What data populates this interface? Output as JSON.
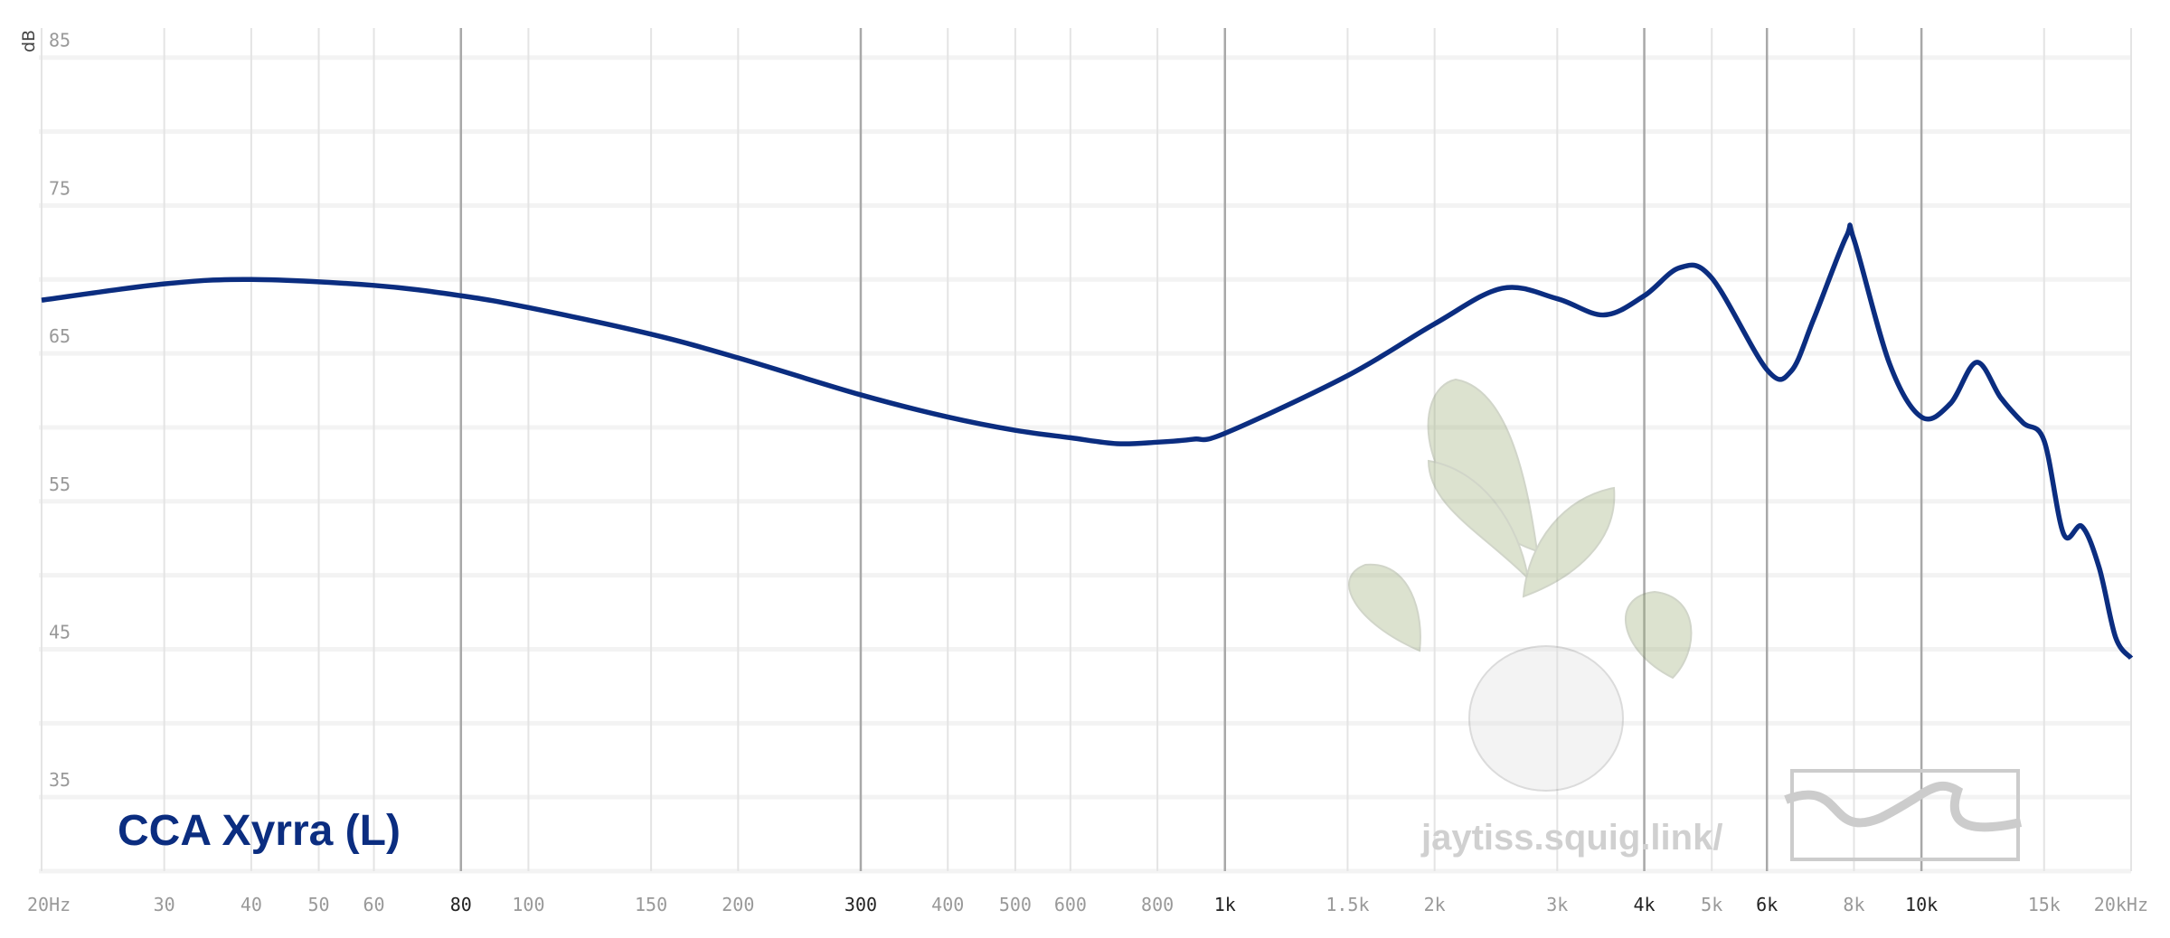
{
  "chart_data": {
    "type": "line",
    "log_x": true,
    "grid": true,
    "y_label": "dB",
    "watermark": "jaytiss.squig.link/",
    "xlim": [
      20,
      20000
    ],
    "ylim": [
      30,
      87
    ],
    "xticks": [
      {
        "value": 20,
        "label": "20Hz"
      },
      30,
      40,
      50,
      60,
      {
        "value": 80,
        "label": "80",
        "major": true
      },
      100,
      150,
      200,
      {
        "value": 300,
        "label": "300",
        "major": true
      },
      400,
      500,
      600,
      800,
      {
        "value": 1000,
        "label": "1k",
        "major": true
      },
      {
        "value": 1500,
        "label": "1.5k"
      },
      {
        "value": 2000,
        "label": "2k"
      },
      {
        "value": 3000,
        "label": "3k"
      },
      {
        "value": 4000,
        "label": "4k",
        "major": true
      },
      {
        "value": 5000,
        "label": "5k"
      },
      {
        "value": 6000,
        "label": "6k",
        "major": true
      },
      {
        "value": 8000,
        "label": "8k"
      },
      {
        "value": 10000,
        "label": "10k",
        "major": true
      },
      {
        "value": 15000,
        "label": "15k"
      },
      {
        "value": 20000,
        "label": "20kHz"
      }
    ],
    "yticks": [
      85,
      75,
      65,
      55,
      45,
      35
    ],
    "minor_yticks": [
      80,
      70,
      60,
      50,
      40,
      30
    ],
    "x": [
      20,
      30,
      40,
      60,
      80,
      100,
      150,
      200,
      300,
      400,
      500,
      600,
      700,
      800,
      900,
      1000,
      1500,
      2000,
      2500,
      3000,
      3500,
      4000,
      4500,
      5000,
      6000,
      6500,
      7000,
      7800,
      8000,
      9000,
      10000,
      11000,
      12000,
      13000,
      14000,
      15000,
      16000,
      17000,
      18000,
      19000,
      20000
    ],
    "series": [
      {
        "name": "CCA Xyrra (L)",
        "color": "#0b2d80",
        "values": [
          68.6,
          69.7,
          70.0,
          69.6,
          68.9,
          68.1,
          66.3,
          64.7,
          62.2,
          60.7,
          59.8,
          59.3,
          58.9,
          59.0,
          59.2,
          59.6,
          63.5,
          67.0,
          69.4,
          68.7,
          67.6,
          68.9,
          70.8,
          70.1,
          63.9,
          63.8,
          67.3,
          72.9,
          72.7,
          64.3,
          60.7,
          61.6,
          64.4,
          62.0,
          60.3,
          59.1,
          52.8,
          53.3,
          50.5,
          45.8,
          44.4
        ]
      }
    ]
  }
}
